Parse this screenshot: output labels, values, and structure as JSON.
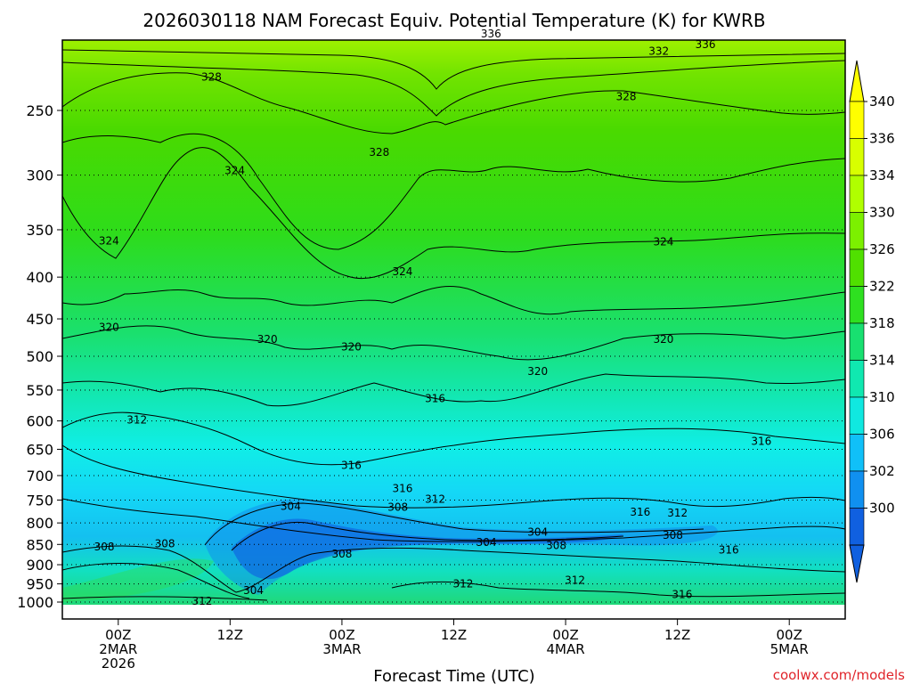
{
  "chart_data": {
    "type": "heatmap",
    "title": "2026030118 NAM Forecast Equiv. Potential Temperature (K) for KWRB",
    "xlabel": "Forecast Time (UTC)",
    "ylabel": "",
    "credit": "coolwx.com/models",
    "x_ticks": [
      {
        "hour": 6,
        "lines": [
          "00Z",
          "2MAR",
          "2026"
        ]
      },
      {
        "hour": 18,
        "lines": [
          "12Z"
        ]
      },
      {
        "hour": 30,
        "lines": [
          "00Z",
          "3MAR"
        ]
      },
      {
        "hour": 42,
        "lines": [
          "12Z"
        ]
      },
      {
        "hour": 54,
        "lines": [
          "00Z",
          "4MAR"
        ]
      },
      {
        "hour": 66,
        "lines": [
          "12Z"
        ]
      },
      {
        "hour": 78,
        "lines": [
          "00Z",
          "5MAR"
        ]
      }
    ],
    "xlim_hours": [
      0,
      84
    ],
    "y_levels_hpa": [
      250,
      300,
      350,
      400,
      450,
      500,
      550,
      600,
      650,
      700,
      750,
      800,
      850,
      900,
      950,
      1000
    ],
    "y_tick_labels": [
      "250",
      "300",
      "350",
      "400",
      "450",
      "500",
      "550",
      "600",
      "650",
      "700",
      "750",
      "800",
      "850",
      "900",
      "950",
      "1000"
    ],
    "colorbar": {
      "labels": [
        "340",
        "336",
        "334",
        "330",
        "326",
        "322",
        "318",
        "314",
        "310",
        "306",
        "302",
        "300"
      ],
      "colors": [
        "#ffff00",
        "#d8ff00",
        "#b0ff00",
        "#7cf000",
        "#50e000",
        "#2ee020",
        "#18e070",
        "#10e8b0",
        "#10e8e0",
        "#10c0f8",
        "#1090f0",
        "#1060e0"
      ]
    },
    "contour_labels": [
      {
        "text": "336",
        "hour": 46.0,
        "hpa": 202
      },
      {
        "text": "336",
        "hour": 69.0,
        "hpa": 208
      },
      {
        "text": "332",
        "hour": 64.0,
        "hpa": 212
      },
      {
        "text": "328",
        "hour": 16.0,
        "hpa": 228
      },
      {
        "text": "328",
        "hour": 60.5,
        "hpa": 241
      },
      {
        "text": "328",
        "hour": 34.0,
        "hpa": 282
      },
      {
        "text": "324",
        "hour": 18.5,
        "hpa": 297
      },
      {
        "text": "324",
        "hour": 5.0,
        "hpa": 362
      },
      {
        "text": "324",
        "hour": 64.5,
        "hpa": 363
      },
      {
        "text": "324",
        "hour": 36.5,
        "hpa": 395
      },
      {
        "text": "320",
        "hour": 5.0,
        "hpa": 462
      },
      {
        "text": "320",
        "hour": 22.0,
        "hpa": 478
      },
      {
        "text": "320",
        "hour": 31.0,
        "hpa": 488
      },
      {
        "text": "320",
        "hour": 64.5,
        "hpa": 478
      },
      {
        "text": "320",
        "hour": 51.0,
        "hpa": 523
      },
      {
        "text": "316",
        "hour": 40.0,
        "hpa": 565
      },
      {
        "text": "316",
        "hour": 75.0,
        "hpa": 637
      },
      {
        "text": "316",
        "hour": 31.0,
        "hpa": 682
      },
      {
        "text": "316",
        "hour": 36.5,
        "hpa": 728
      },
      {
        "text": "316",
        "hour": 62.0,
        "hpa": 778
      },
      {
        "text": "312",
        "hour": 8.0,
        "hpa": 600
      },
      {
        "text": "312",
        "hour": 40.0,
        "hpa": 750
      },
      {
        "text": "312",
        "hour": 66.0,
        "hpa": 780
      },
      {
        "text": "312",
        "hour": 43.0,
        "hpa": 952
      },
      {
        "text": "312",
        "hour": 55.0,
        "hpa": 943
      },
      {
        "text": "312",
        "hour": 15.0,
        "hpa": 1000
      },
      {
        "text": "316",
        "hour": 66.5,
        "hpa": 981
      },
      {
        "text": "316",
        "hour": 71.5,
        "hpa": 866
      },
      {
        "text": "308",
        "hour": 36.0,
        "hpa": 767
      },
      {
        "text": "308",
        "hour": 4.5,
        "hpa": 858
      },
      {
        "text": "308",
        "hour": 11.0,
        "hpa": 850
      },
      {
        "text": "308",
        "hour": 30.0,
        "hpa": 875
      },
      {
        "text": "308",
        "hour": 53.0,
        "hpa": 855
      },
      {
        "text": "308",
        "hour": 65.5,
        "hpa": 830
      },
      {
        "text": "304",
        "hour": 24.5,
        "hpa": 765
      },
      {
        "text": "304",
        "hour": 45.5,
        "hpa": 847
      },
      {
        "text": "304",
        "hour": 51.0,
        "hpa": 823
      },
      {
        "text": "304",
        "hour": 20.5,
        "hpa": 970
      }
    ]
  }
}
